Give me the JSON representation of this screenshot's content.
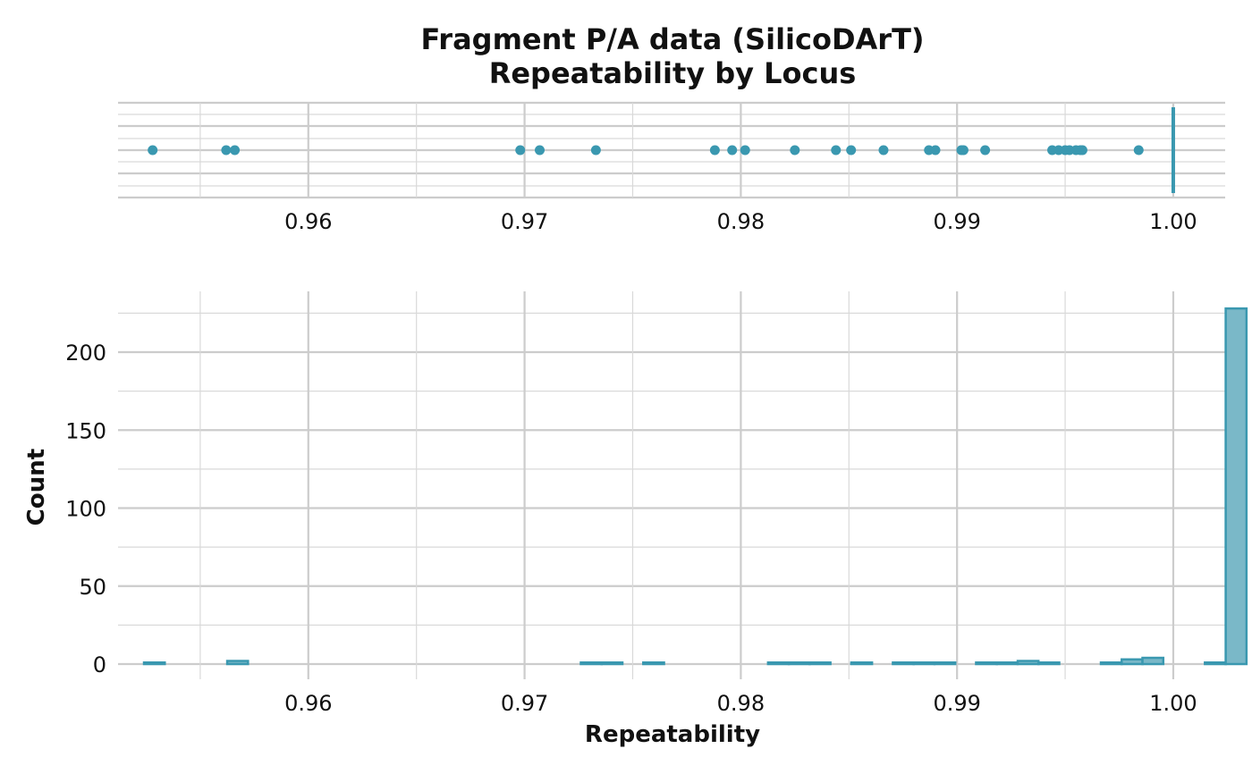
{
  "chart_data": [
    {
      "type": "scatter",
      "panel": "repeatability dot strip",
      "title": "Fragment P/A data (SilicoDArT)",
      "subtitle": "Repeatability by Locus",
      "xlim": [
        0.9512,
        1.0024
      ],
      "x_ticks": [
        "0.96",
        "0.97",
        "0.98",
        "0.99",
        "1.00"
      ],
      "x_tick_values": [
        0.96,
        0.97,
        0.98,
        0.99,
        1.0
      ],
      "grid": true,
      "color": "#3a98b0",
      "points": [
        0.9528,
        0.9562,
        0.9566,
        0.9698,
        0.9707,
        0.9733,
        0.9788,
        0.9796,
        0.9802,
        0.9825,
        0.9844,
        0.9851,
        0.9866,
        0.9887,
        0.989,
        0.9902,
        0.9903,
        0.9913,
        0.9944,
        0.9947,
        0.995,
        0.9952,
        0.9955,
        0.9957,
        0.9958,
        0.9984
      ],
      "mass_at_one": 1.0
    },
    {
      "type": "bar",
      "panel": "repeatability histogram",
      "xlabel": "Repeatability",
      "ylabel": "Count",
      "xlim": [
        0.9512,
        1.0024
      ],
      "ylim": [
        0,
        237
      ],
      "x_ticks": [
        "0.96",
        "0.97",
        "0.98",
        "0.99",
        "1.00"
      ],
      "x_tick_values": [
        0.96,
        0.97,
        0.98,
        0.99,
        1.0
      ],
      "y_ticks": [
        "0",
        "50",
        "100",
        "150",
        "200"
      ],
      "y_tick_values": [
        0,
        50,
        100,
        150,
        200
      ],
      "grid": true,
      "fill_color": "#7ab8c8",
      "line_color": "#3a98b0",
      "bin_start": 0.9524,
      "bin_width": 0.000962,
      "values": [
        1,
        0,
        0,
        0,
        2,
        0,
        0,
        0,
        0,
        0,
        0,
        0,
        0,
        0,
        0,
        0,
        0,
        0,
        0,
        0,
        0,
        1,
        1,
        0,
        1,
        0,
        0,
        0,
        0,
        0,
        1,
        1,
        1,
        0,
        1,
        0,
        1,
        1,
        1,
        0,
        1,
        1,
        2,
        1,
        0,
        0,
        1,
        3,
        4,
        0,
        0,
        1,
        228
      ]
    }
  ]
}
